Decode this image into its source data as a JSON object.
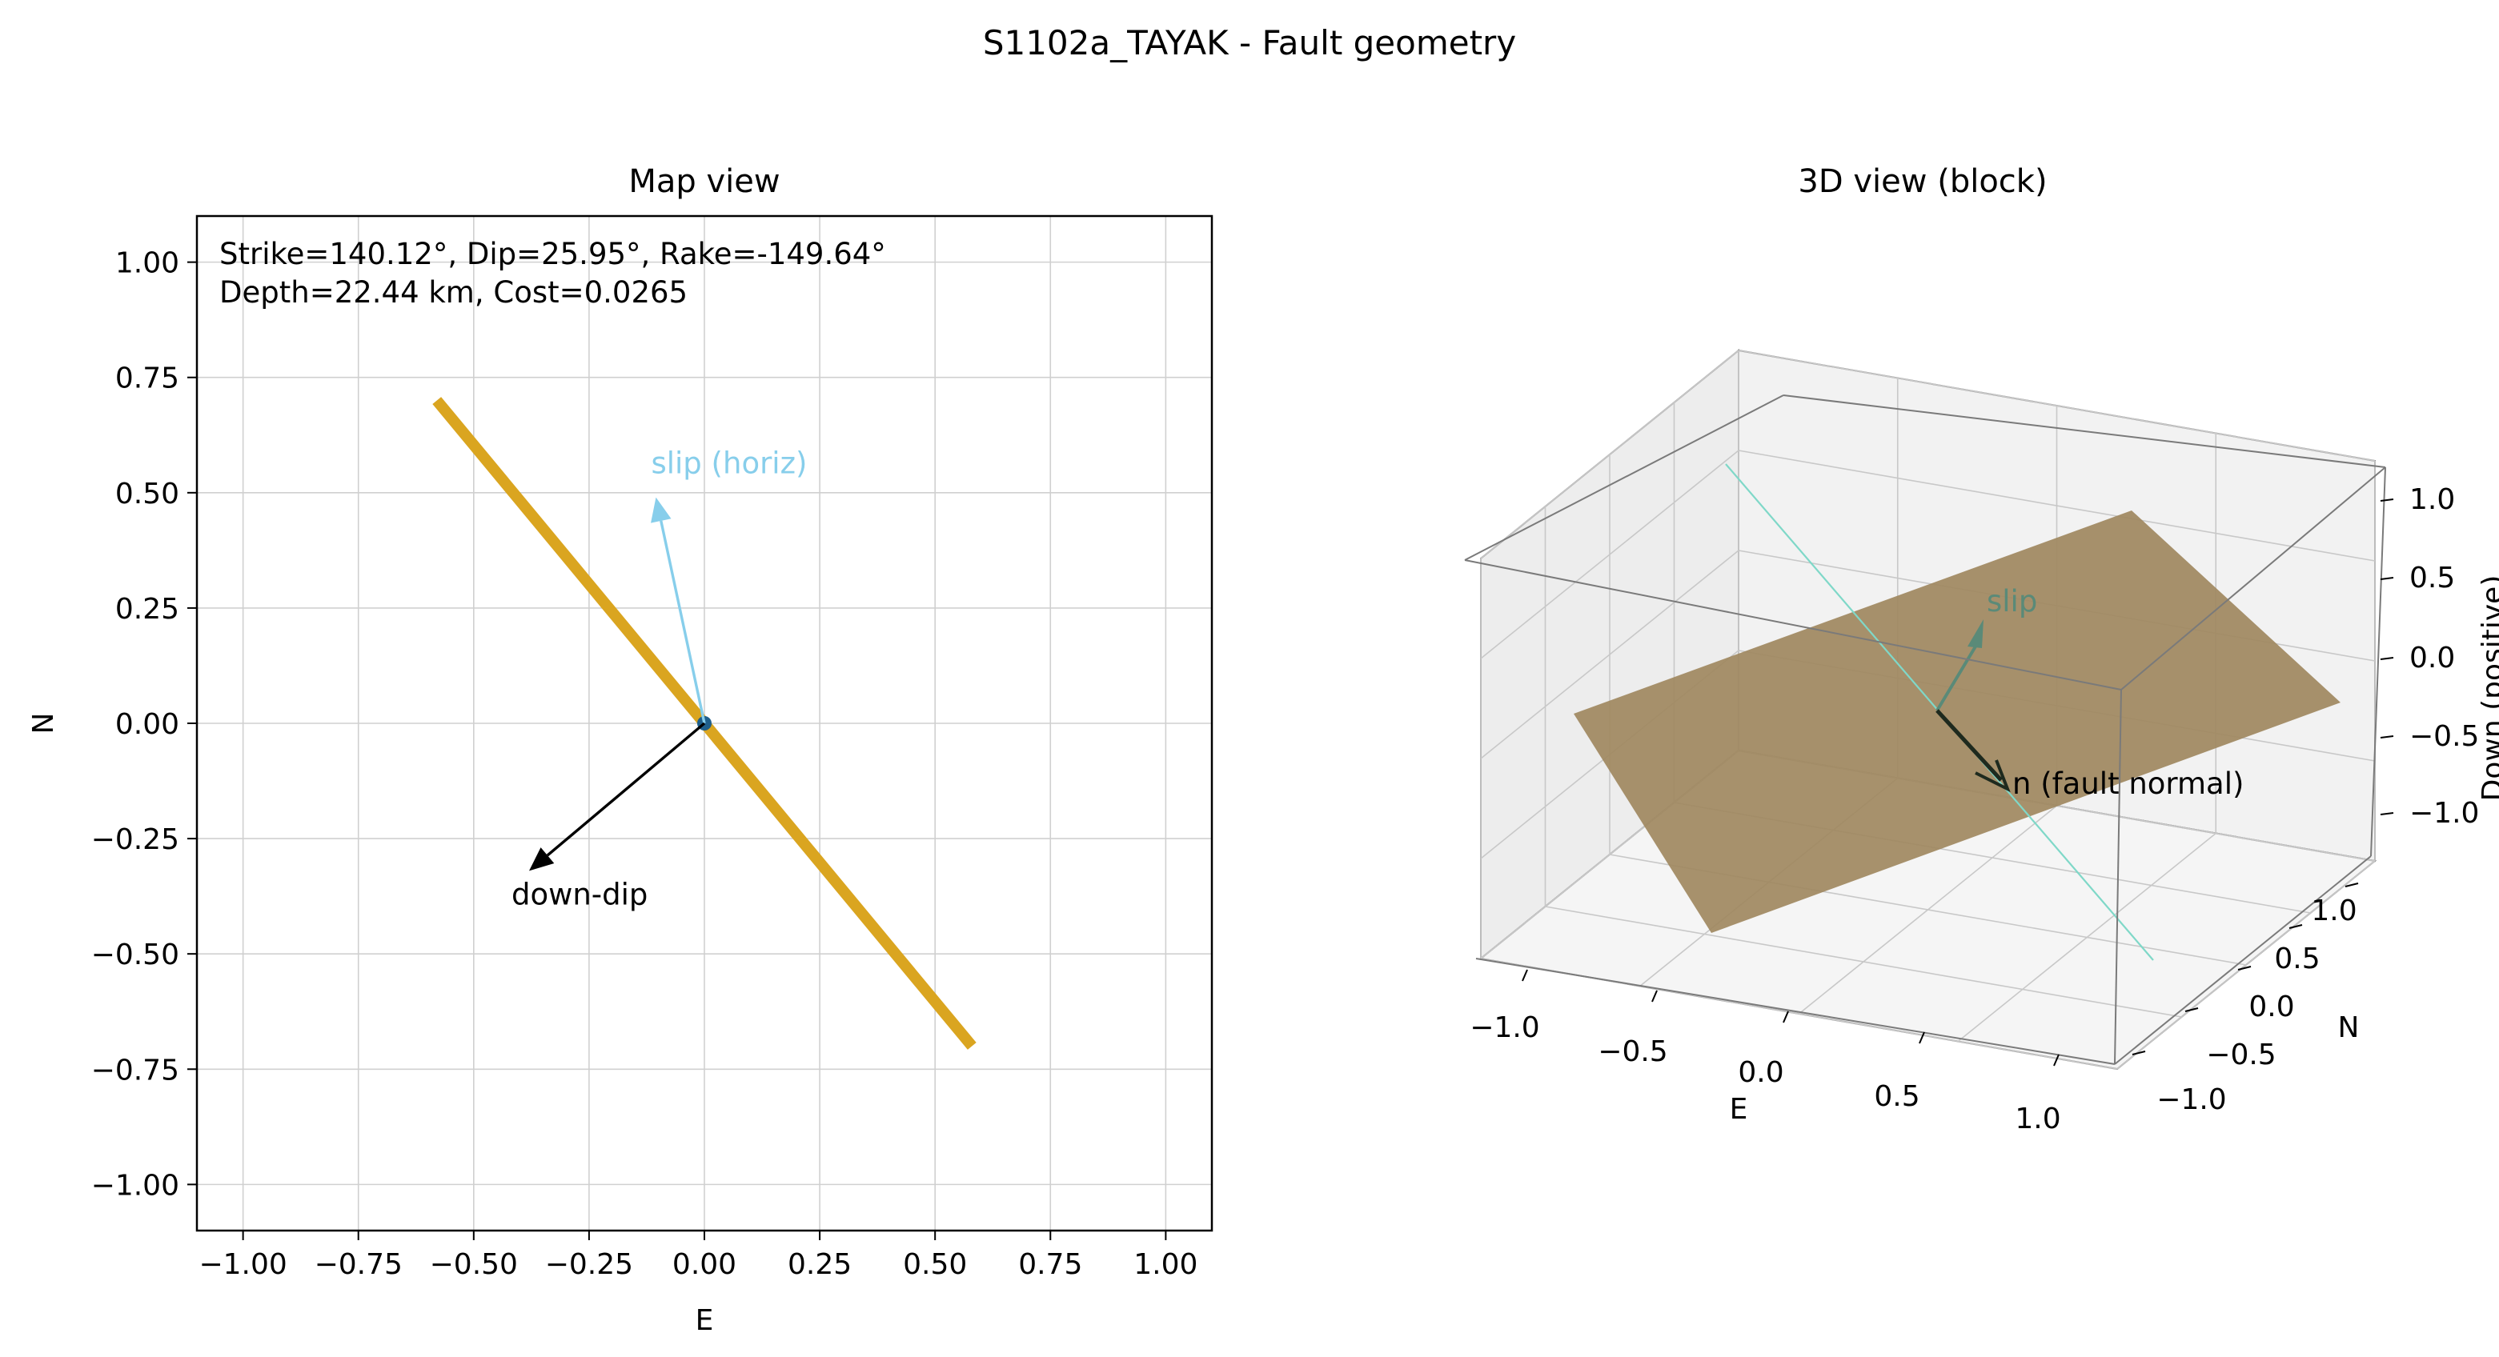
{
  "figure": {
    "suptitle": "S1102a_TAYAK - Fault geometry"
  },
  "chart_data": [
    {
      "type": "line",
      "title": "Map view",
      "xlabel": "E",
      "ylabel": "N",
      "xlim": [
        -1.1,
        1.1
      ],
      "ylim": [
        -1.1,
        1.1
      ],
      "xticks": [
        -1.0,
        -0.75,
        -0.5,
        -0.25,
        0.0,
        0.25,
        0.5,
        0.75,
        1.0
      ],
      "yticks": [
        -1.0,
        -0.75,
        -0.5,
        -0.25,
        0.0,
        0.25,
        0.5,
        0.75,
        1.0
      ],
      "xtick_labels": [
        "−1.00",
        "−0.75",
        "−0.50",
        "−0.25",
        "0.00",
        "0.25",
        "0.50",
        "0.75",
        "1.00"
      ],
      "ytick_labels": [
        "−1.00",
        "−0.75",
        "−0.50",
        "−0.25",
        "0.00",
        "0.25",
        "0.50",
        "0.75",
        "1.00"
      ],
      "grid": true,
      "info_lines": [
        "Strike=140.12°, Dip=25.95°, Rake=-149.64°",
        "Depth=22.44 km, Cost=0.0265"
      ],
      "strike_line": {
        "x": [
          -0.58,
          0.58
        ],
        "y": [
          0.7,
          -0.7
        ],
        "color": "#DAA520"
      },
      "origin": {
        "x": 0.0,
        "y": 0.0
      },
      "arrows": [
        {
          "label": "slip (horiz)",
          "x0": 0.0,
          "y0": 0.0,
          "x1": -0.105,
          "y1": 0.49,
          "color": "#87CEEB"
        },
        {
          "label": "down-dip",
          "x0": 0.0,
          "y0": 0.0,
          "x1": -0.38,
          "y1": -0.32,
          "color": "#000000"
        }
      ]
    },
    {
      "type": "area",
      "title": "3D view (block)",
      "xlabel": "E",
      "ylabel": "N",
      "zlabel": "Down (positive)",
      "xlim": [
        -1.0,
        1.0
      ],
      "ylim": [
        -1.0,
        1.0
      ],
      "zlim": [
        -1.0,
        1.0
      ],
      "x_tick_labels": [
        "−1.0",
        "−0.5",
        "0.0",
        "0.5",
        "1.0"
      ],
      "y_tick_labels": [
        "−1.0",
        "−0.5",
        "0.0",
        "0.5",
        "1.0"
      ],
      "z_tick_labels": [
        "−1.0",
        "−0.5",
        "0.0",
        "0.5",
        "1.0"
      ],
      "grid": true,
      "plane_color": "#A08860",
      "strike_trace_color": "#7FD8C8",
      "vectors": [
        {
          "label": "slip",
          "color": "#5A8A78"
        },
        {
          "label": "n (fault normal)",
          "color": "#1E2A1E"
        }
      ]
    }
  ]
}
